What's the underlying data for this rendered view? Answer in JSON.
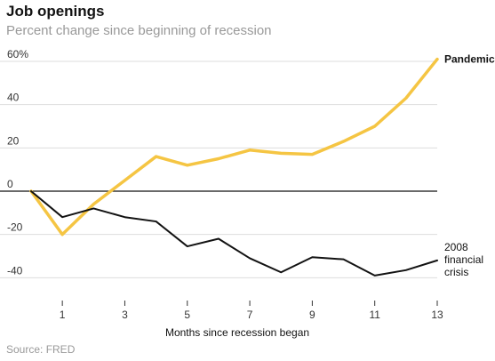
{
  "chart_data": {
    "type": "line",
    "title": "Job openings",
    "subtitle": "Percent change since beginning of recession",
    "source": "Source: FRED",
    "xlabel": "Months since recession began",
    "ylabel": "",
    "xlim": [
      0,
      13
    ],
    "ylim": [
      -50,
      65
    ],
    "x_ticks": [
      1,
      3,
      5,
      7,
      9,
      11,
      13
    ],
    "x_tick_labels": [
      "1",
      "3",
      "5",
      "7",
      "9",
      "11",
      "13"
    ],
    "y_ticks": [
      60,
      40,
      20,
      0,
      -20,
      -40
    ],
    "y_tick_labels": [
      "60%",
      "40",
      "20",
      "0",
      "-20",
      "-40"
    ],
    "grid": true,
    "x": [
      0,
      1,
      2,
      3,
      4,
      5,
      6,
      7,
      8,
      9,
      10,
      11,
      12,
      13
    ],
    "series": [
      {
        "name": "Pandemic",
        "label_lines": [
          "Pandemic"
        ],
        "color": "#f5c543",
        "values": [
          0,
          -20,
          -6,
          5,
          16,
          12,
          15,
          19,
          17.5,
          17,
          23,
          30,
          43,
          61
        ]
      },
      {
        "name": "2008 financial crisis",
        "label_lines": [
          "2008",
          "financial",
          "crisis"
        ],
        "color": "#121212",
        "values": [
          0,
          -12,
          -8,
          -12,
          -14,
          -25.5,
          -22,
          -31,
          -37.5,
          -30.5,
          -31.5,
          -39,
          -36.5,
          -32
        ]
      }
    ]
  }
}
